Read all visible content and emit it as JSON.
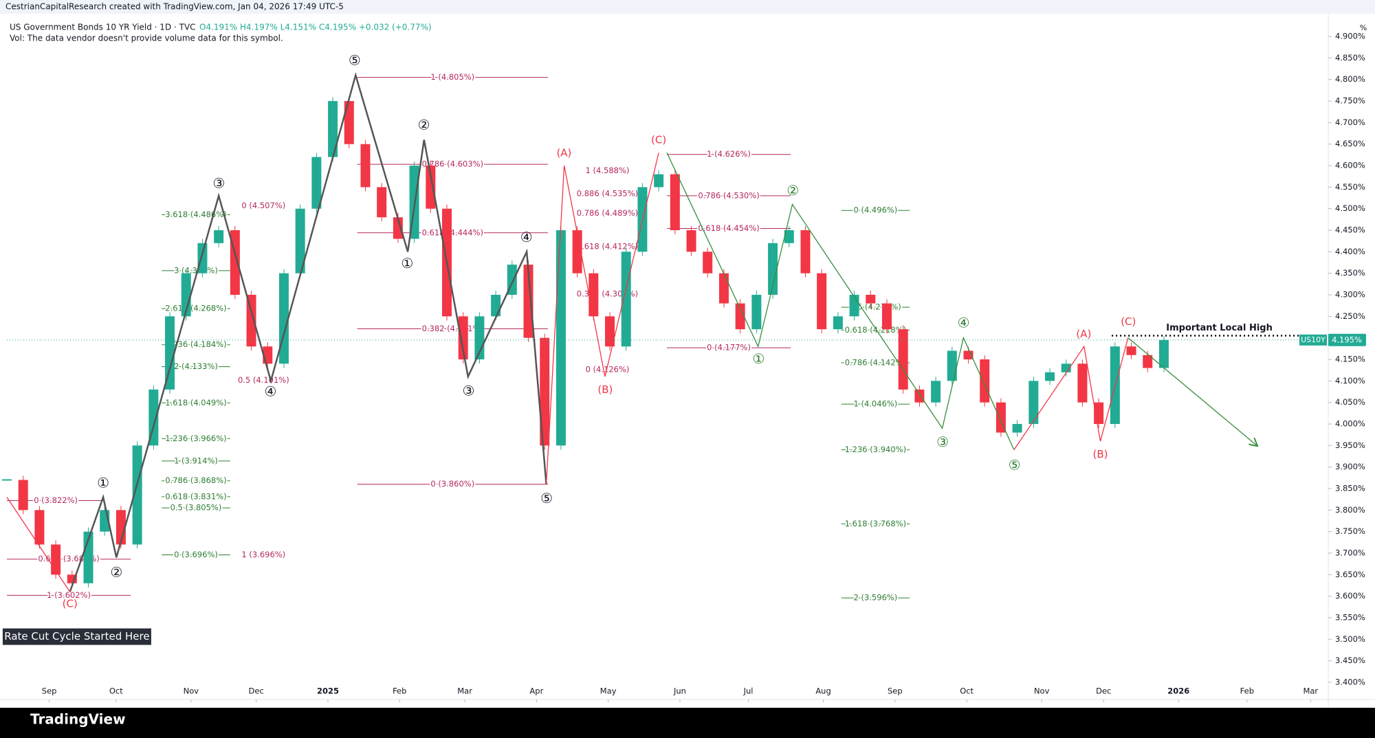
{
  "chart_data": {
    "type": "candlestick",
    "header": "CestrianCapitalResearch created with TradingView.com, Jan 04, 2026 17:49 UTC-5",
    "title": "US Government Bonds 10 YR Yield · 1D · TVC",
    "ohlc_text": "O4.191% H4.197% L4.151% C4.195% +0.032 (+0.77%)",
    "subtitle": "Vol: The data vendor doesn't provide volume data for this symbol.",
    "unit": "%",
    "symbol": "US10Y",
    "last_price": 4.195,
    "last_price_label": "4.195%",
    "brand": "TradingView",
    "xlim": [
      0,
      81
    ],
    "ylim": [
      3.36,
      4.94
    ],
    "yticks": [
      {
        "value": 3.4,
        "label": "3.400%"
      },
      {
        "value": 3.45,
        "label": "3.450%"
      },
      {
        "value": 3.5,
        "label": "3.500%"
      },
      {
        "value": 3.55,
        "label": "3.550%"
      },
      {
        "value": 3.6,
        "label": "3.600%"
      },
      {
        "value": 3.65,
        "label": "3.650%"
      },
      {
        "value": 3.7,
        "label": "3.700%"
      },
      {
        "value": 3.75,
        "label": "3.750%"
      },
      {
        "value": 3.8,
        "label": "3.800%"
      },
      {
        "value": 3.85,
        "label": "3.850%"
      },
      {
        "value": 3.9,
        "label": "3.900%"
      },
      {
        "value": 3.95,
        "label": "3.950%"
      },
      {
        "value": 4.0,
        "label": "4.000%"
      },
      {
        "value": 4.05,
        "label": "4.050%"
      },
      {
        "value": 4.1,
        "label": "4.100%"
      },
      {
        "value": 4.15,
        "label": "4.150%"
      },
      {
        "value": 4.2,
        "label": "4.200%"
      },
      {
        "value": 4.25,
        "label": "4.250%"
      },
      {
        "value": 4.3,
        "label": "4.300%"
      },
      {
        "value": 4.35,
        "label": "4.350%"
      },
      {
        "value": 4.4,
        "label": "4.400%"
      },
      {
        "value": 4.45,
        "label": "4.450%"
      },
      {
        "value": 4.5,
        "label": "4.500%"
      },
      {
        "value": 4.55,
        "label": "4.550%"
      },
      {
        "value": 4.6,
        "label": "4.600%"
      },
      {
        "value": 4.65,
        "label": "4.650%"
      },
      {
        "value": 4.7,
        "label": "4.700%"
      },
      {
        "value": 4.75,
        "label": "4.750%"
      },
      {
        "value": 4.8,
        "label": "4.800%"
      },
      {
        "value": 4.85,
        "label": "4.850%"
      },
      {
        "value": 4.9,
        "label": "4.900%"
      }
    ],
    "xticks": [
      {
        "value": 2.6,
        "label": "Sep"
      },
      {
        "value": 6.7,
        "label": "Oct"
      },
      {
        "value": 11.3,
        "label": "Nov"
      },
      {
        "value": 15.3,
        "label": "Dec"
      },
      {
        "value": 19.7,
        "label": "2025"
      },
      {
        "value": 24.1,
        "label": "Feb"
      },
      {
        "value": 28.1,
        "label": "Mar"
      },
      {
        "value": 32.5,
        "label": "Apr"
      },
      {
        "value": 36.9,
        "label": "May"
      },
      {
        "value": 41.3,
        "label": "Jun"
      },
      {
        "value": 45.5,
        "label": "Jul"
      },
      {
        "value": 50.1,
        "label": "Aug"
      },
      {
        "value": 54.5,
        "label": "Sep"
      },
      {
        "value": 58.9,
        "label": "Oct"
      },
      {
        "value": 63.5,
        "label": "Nov"
      },
      {
        "value": 67.3,
        "label": "Dec"
      },
      {
        "value": 71.9,
        "label": "2026"
      },
      {
        "value": 76.1,
        "label": "Feb"
      },
      {
        "value": 80,
        "label": "Mar"
      }
    ],
    "up_color": "#22ab94",
    "down_color": "#f23645",
    "series": [
      {
        "name": "US10Y",
        "x": [
          0,
          1,
          2,
          3,
          4,
          5,
          6,
          7,
          8,
          9,
          10,
          11,
          12,
          13,
          14,
          15,
          16,
          17,
          18,
          19,
          20,
          21,
          22,
          23,
          24,
          25,
          26,
          27,
          28,
          29,
          30,
          31,
          32,
          33,
          34,
          35,
          36,
          37,
          38,
          39,
          40,
          41,
          42,
          43,
          44,
          45,
          46,
          47,
          48,
          49,
          50,
          51,
          52,
          53,
          54,
          55,
          56,
          57,
          58,
          59,
          60,
          61,
          62,
          63,
          64,
          65,
          66,
          67,
          68,
          69,
          70,
          71
        ],
        "values": [
          3.87,
          3.8,
          3.72,
          3.65,
          3.63,
          3.75,
          3.8,
          3.72,
          3.95,
          4.08,
          4.25,
          4.35,
          4.42,
          4.45,
          4.3,
          4.18,
          4.14,
          4.35,
          4.5,
          4.62,
          4.75,
          4.65,
          4.55,
          4.48,
          4.43,
          4.6,
          4.5,
          4.25,
          4.15,
          4.25,
          4.3,
          4.37,
          4.2,
          3.95,
          4.45,
          4.35,
          4.25,
          4.18,
          4.4,
          4.55,
          4.58,
          4.45,
          4.4,
          4.35,
          4.28,
          4.22,
          4.3,
          4.42,
          4.45,
          4.35,
          4.22,
          4.25,
          4.3,
          4.28,
          4.22,
          4.08,
          4.05,
          4.1,
          4.17,
          4.15,
          4.05,
          3.98,
          4.0,
          4.1,
          4.12,
          4.14,
          4.05,
          4.0,
          4.18,
          4.16,
          4.13,
          4.195
        ]
      }
    ],
    "levels": [
      {
        "label": "0 (3.822%)",
        "value": 3.822,
        "x0": 0,
        "x1": 6,
        "color": "#b5275f",
        "line": true
      },
      {
        "label": "0.618 (3.686%)",
        "value": 3.686,
        "x0": 0,
        "x1": 7.6,
        "color": "#b5275f",
        "line": true
      },
      {
        "label": "1 (3.602%)",
        "value": 3.602,
        "x0": 0,
        "x1": 7.6,
        "color": "#b5275f",
        "line": true
      },
      {
        "label": "3.618 (4.486%)",
        "value": 4.486,
        "x0": 9.5,
        "x1": 13.7,
        "color": "#2e7d32",
        "line": true
      },
      {
        "label": "3 (4.356%)",
        "value": 4.356,
        "x0": 9.5,
        "x1": 13.7,
        "color": "#2e7d32",
        "line": true
      },
      {
        "label": "2.618 (4.268%)",
        "value": 4.268,
        "x0": 9.5,
        "x1": 13.7,
        "color": "#2e7d32",
        "line": true
      },
      {
        "label": "2.236 (4.184%)",
        "value": 4.184,
        "x0": 9.5,
        "x1": 13.7,
        "color": "#2e7d32",
        "line": true
      },
      {
        "label": "2 (4.133%)",
        "value": 4.133,
        "x0": 9.5,
        "x1": 13.7,
        "color": "#2e7d32",
        "line": true
      },
      {
        "label": "1.618 (4.049%)",
        "value": 4.049,
        "x0": 9.5,
        "x1": 13.7,
        "color": "#2e7d32",
        "line": true
      },
      {
        "label": "1.236 (3.966%)",
        "value": 3.966,
        "x0": 9.5,
        "x1": 13.7,
        "color": "#2e7d32",
        "line": true
      },
      {
        "label": "1 (3.914%)",
        "value": 3.914,
        "x0": 9.5,
        "x1": 13.7,
        "color": "#2e7d32",
        "line": true
      },
      {
        "label": "0.786 (3.868%)",
        "value": 3.868,
        "x0": 9.5,
        "x1": 13.7,
        "color": "#2e7d32",
        "line": true
      },
      {
        "label": "0.618 (3.831%)",
        "value": 3.831,
        "x0": 9.5,
        "x1": 13.7,
        "color": "#2e7d32",
        "line": true
      },
      {
        "label": "0.5 (3.805%)",
        "value": 3.805,
        "x0": 9.5,
        "x1": 13.7,
        "color": "#2e7d32",
        "line": true
      },
      {
        "label": "0 (3.696%)",
        "value": 3.696,
        "x0": 9.5,
        "x1": 13.7,
        "color": "#2e7d32",
        "line": true
      },
      {
        "label": "0 (4.507%)",
        "value": 4.507,
        "x0": 14.5,
        "x1": 17,
        "color": "#b5275f",
        "line": false
      },
      {
        "label": "0.5 (4.101%)",
        "value": 4.101,
        "x0": 14.5,
        "x1": 17,
        "color": "#b5275f",
        "line": false
      },
      {
        "label": "1 (3.696%)",
        "value": 3.696,
        "x0": 14.5,
        "x1": 17,
        "color": "#b5275f",
        "line": false
      },
      {
        "label": "1 (4.805%)",
        "value": 4.805,
        "x0": 21.5,
        "x1": 33.2,
        "color": "#b5275f",
        "line": true
      },
      {
        "label": "0.786 (4.603%)",
        "value": 4.603,
        "x0": 21.5,
        "x1": 33.2,
        "color": "#b5275f",
        "line": true
      },
      {
        "label": "0.618 (4.444%)",
        "value": 4.444,
        "x0": 21.5,
        "x1": 33.2,
        "color": "#b5275f",
        "line": true
      },
      {
        "label": "0.382 (4.221%)",
        "value": 4.221,
        "x0": 21.5,
        "x1": 33.2,
        "color": "#b5275f",
        "line": true
      },
      {
        "label": "0 (3.860%)",
        "value": 3.86,
        "x0": 21.5,
        "x1": 33.2,
        "color": "#b5275f",
        "line": true
      },
      {
        "label": "1 (4.588%)",
        "value": 4.588,
        "x0": 35,
        "x1": 38.7,
        "color": "#b5275f",
        "line": false
      },
      {
        "label": "0.886 (4.535%)",
        "value": 4.535,
        "x0": 35,
        "x1": 38.7,
        "color": "#b5275f",
        "line": false
      },
      {
        "label": "0.786 (4.489%)",
        "value": 4.489,
        "x0": 35,
        "x1": 38.7,
        "color": "#b5275f",
        "line": false
      },
      {
        "label": "0.618 (4.412%)",
        "value": 4.412,
        "x0": 35,
        "x1": 38.7,
        "color": "#b5275f",
        "line": false
      },
      {
        "label": "0.382 (4.302%)",
        "value": 4.302,
        "x0": 35,
        "x1": 38.7,
        "color": "#b5275f",
        "line": false
      },
      {
        "label": "0 (4.126%)",
        "value": 4.126,
        "x0": 35,
        "x1": 38.7,
        "color": "#b5275f",
        "line": false
      },
      {
        "label": "1 (4.626%)",
        "value": 4.626,
        "x0": 40.5,
        "x1": 48.1,
        "color": "#b5275f",
        "line": true
      },
      {
        "label": "0.786 (4.530%)",
        "value": 4.53,
        "x0": 40.5,
        "x1": 48.1,
        "color": "#b5275f",
        "line": true
      },
      {
        "label": "0.618 (4.454%)",
        "value": 4.454,
        "x0": 40.5,
        "x1": 48.1,
        "color": "#b5275f",
        "line": true
      },
      {
        "label": "0 (4.177%)",
        "value": 4.177,
        "x0": 40.5,
        "x1": 48.1,
        "color": "#b5275f",
        "line": true
      },
      {
        "label": "0 (4.496%)",
        "value": 4.496,
        "x0": 51.2,
        "x1": 55.4,
        "color": "#2e7d32",
        "line": true
      },
      {
        "label": "0.5 (4.271%)",
        "value": 4.271,
        "x0": 51.2,
        "x1": 55.4,
        "color": "#2e7d32",
        "line": true
      },
      {
        "label": "0.618 (4.218%)",
        "value": 4.218,
        "x0": 51.2,
        "x1": 55.4,
        "color": "#2e7d32",
        "line": true
      },
      {
        "label": "0.786 (4.142%)",
        "value": 4.142,
        "x0": 51.2,
        "x1": 55.4,
        "color": "#2e7d32",
        "line": true
      },
      {
        "label": "1 (4.046%)",
        "value": 4.046,
        "x0": 51.2,
        "x1": 55.4,
        "color": "#2e7d32",
        "line": true
      },
      {
        "label": "1.236 (3.940%)",
        "value": 3.94,
        "x0": 51.2,
        "x1": 55.4,
        "color": "#2e7d32",
        "line": true
      },
      {
        "label": "1.618 (3.768%)",
        "value": 3.768,
        "x0": 51.2,
        "x1": 55.4,
        "color": "#2e7d32",
        "line": true
      },
      {
        "label": "2 (3.596%)",
        "value": 3.596,
        "x0": 51.2,
        "x1": 55.4,
        "color": "#2e7d32",
        "line": true
      }
    ],
    "paths": [
      {
        "color": "#555555",
        "x": [
          3.87,
          5.91,
          6.72,
          13.0,
          16.2,
          21.4,
          24.6,
          25.6,
          28.3,
          31.9,
          33.1
        ],
        "values": [
          3.61,
          3.83,
          3.69,
          4.53,
          4.1,
          4.81,
          4.4,
          4.66,
          4.11,
          4.4,
          3.86
        ]
      },
      {
        "color": "#f23645",
        "x": [
          0,
          3.87
        ],
        "values": [
          3.83,
          3.61
        ]
      },
      {
        "color": "#f23645",
        "x": [
          33.1,
          34.2,
          36.7,
          40.0
        ],
        "values": [
          3.86,
          4.6,
          4.11,
          4.63
        ]
      },
      {
        "color": "#388e3c",
        "x": [
          40.5,
          46.1,
          48.2,
          57.4,
          58.7,
          61.8
        ],
        "values": [
          4.63,
          4.18,
          4.51,
          3.99,
          4.2,
          3.94
        ]
      },
      {
        "color": "#f23645",
        "x": [
          61.8,
          66.1,
          67.1,
          68.8
        ],
        "values": [
          3.94,
          4.18,
          3.96,
          4.2
        ]
      },
      {
        "color": "#388e3c",
        "x": [
          68.8,
          76.7
        ],
        "values": [
          4.2,
          3.95
        ],
        "arrow": true
      }
    ],
    "wave_labels": [
      {
        "text": "①",
        "x": 5.91,
        "y": 3.861,
        "color": "#131722"
      },
      {
        "text": "②",
        "x": 6.72,
        "y": 3.654,
        "color": "#131722"
      },
      {
        "text": "③",
        "x": 13.01,
        "y": 4.557,
        "color": "#131722"
      },
      {
        "text": "④",
        "x": 16.18,
        "y": 4.073,
        "color": "#131722"
      },
      {
        "text": "⑤",
        "x": 21.34,
        "y": 4.843,
        "color": "#131722"
      },
      {
        "text": "①",
        "x": 24.57,
        "y": 4.371,
        "color": "#131722"
      },
      {
        "text": "②",
        "x": 25.59,
        "y": 4.693,
        "color": "#131722"
      },
      {
        "text": "③",
        "x": 28.33,
        "y": 4.075,
        "color": "#131722"
      },
      {
        "text": "④",
        "x": 31.88,
        "y": 4.432,
        "color": "#131722"
      },
      {
        "text": "⑤",
        "x": 33.12,
        "y": 3.825,
        "color": "#131722"
      },
      {
        "text": "(C)",
        "x": 3.87,
        "y": 3.582,
        "color": "#f23645"
      },
      {
        "text": "(A)",
        "x": 34.19,
        "y": 4.629,
        "color": "#f23645"
      },
      {
        "text": "(B)",
        "x": 36.72,
        "y": 4.079,
        "color": "#f23645"
      },
      {
        "text": "(C)",
        "x": 40.0,
        "y": 4.659,
        "color": "#f23645"
      },
      {
        "text": "①",
        "x": 46.13,
        "y": 4.149,
        "color": "#2e7d32"
      },
      {
        "text": "②",
        "x": 48.23,
        "y": 4.54,
        "color": "#2e7d32"
      },
      {
        "text": "③",
        "x": 57.42,
        "y": 3.956,
        "color": "#2e7d32"
      },
      {
        "text": "④",
        "x": 58.71,
        "y": 4.233,
        "color": "#2e7d32"
      },
      {
        "text": "⑤",
        "x": 61.83,
        "y": 3.903,
        "color": "#2e7d32"
      },
      {
        "text": "(A)",
        "x": 66.08,
        "y": 4.208,
        "color": "#f23645"
      },
      {
        "text": "(B)",
        "x": 67.1,
        "y": 3.929,
        "color": "#f23645"
      },
      {
        "text": "(C)",
        "x": 68.82,
        "y": 4.237,
        "color": "#f23645"
      }
    ],
    "annotations": [
      {
        "text": "Important Local High",
        "x": 74.4,
        "y": 4.223,
        "line_value": 4.205,
        "line_x0": 67.8,
        "line_x1": 80
      },
      {
        "text": "Rate Cut Cycle Started Here",
        "x": 4.3,
        "y": 3.506,
        "box": true
      }
    ]
  }
}
